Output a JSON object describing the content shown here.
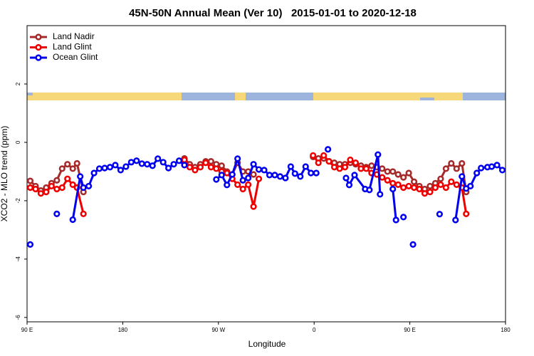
{
  "chart_data": {
    "type": "line",
    "title": "45N-50N Annual Mean (Ver 10)   2015-01-01 to 2020-12-18",
    "x_label": "Longitude",
    "y_label": "XCO2 - MLO trend (ppm)",
    "xlim": [
      90,
      540
    ],
    "ylim": [
      -6.15,
      4.0
    ],
    "xticks": [
      {
        "value": 90,
        "label": "90 E"
      },
      {
        "value": 180,
        "label": "180"
      },
      {
        "value": 270,
        "label": "90 W"
      },
      {
        "value": 360,
        "label": "0"
      },
      {
        "value": 450,
        "label": "90 E"
      },
      {
        "value": 540,
        "label": "180"
      }
    ],
    "yticks": [
      -6,
      -4,
      -2,
      0,
      2
    ],
    "legend_position": "top-left",
    "series": [
      {
        "name": "Land Nadir",
        "color": "#a52a2a",
        "x": [
          93,
          98,
          103,
          108,
          113,
          118,
          123,
          128,
          133,
          137,
          143,
          190,
          238,
          243,
          248,
          253,
          258,
          263,
          268,
          273,
          278,
          283,
          288,
          293,
          298,
          303,
          330,
          359,
          364,
          369,
          374,
          379,
          384,
          389,
          394,
          399,
          404,
          409,
          414,
          419,
          424,
          429,
          434,
          439,
          444,
          449,
          454,
          459,
          464,
          469,
          474,
          479,
          484,
          489,
          494,
          499,
          503
        ],
        "values": [
          -1.32,
          -1.5,
          -1.65,
          -1.55,
          -1.4,
          -1.3,
          -0.9,
          -0.75,
          -0.9,
          -0.72,
          -1.7,
          null,
          -0.55,
          -0.75,
          -0.85,
          -0.75,
          -0.65,
          -0.65,
          -0.75,
          -0.8,
          -1.0,
          -1.1,
          -0.7,
          -1.0,
          -1.0,
          -1.1,
          null,
          -0.5,
          -0.55,
          -0.55,
          -0.65,
          -0.7,
          -0.75,
          -0.75,
          -0.7,
          -0.75,
          -0.8,
          -0.85,
          -0.8,
          -0.85,
          -0.9,
          -1.0,
          -1.0,
          -1.1,
          -1.2,
          -1.05,
          -1.35,
          -1.5,
          -1.6,
          -1.5,
          -1.4,
          -1.25,
          -0.9,
          -0.72,
          -0.9,
          -0.72,
          -1.7
        ]
      },
      {
        "name": "Land Glint",
        "color": "#ee0000",
        "x": [
          93,
          98,
          103,
          108,
          113,
          118,
          123,
          128,
          133,
          137,
          143,
          190,
          238,
          243,
          248,
          253,
          258,
          263,
          268,
          273,
          278,
          283,
          288,
          293,
          298,
          303,
          308,
          330,
          359,
          364,
          369,
          374,
          379,
          384,
          389,
          394,
          399,
          404,
          409,
          414,
          419,
          424,
          429,
          434,
          439,
          444,
          449,
          454,
          459,
          464,
          469,
          474,
          479,
          484,
          489,
          494,
          499,
          503
        ],
        "values": [
          -1.55,
          -1.6,
          -1.75,
          -1.7,
          -1.5,
          -1.6,
          -1.55,
          -1.25,
          -1.45,
          -1.55,
          -2.45,
          null,
          -0.6,
          -0.85,
          -0.95,
          -0.85,
          -0.7,
          -0.85,
          -0.9,
          -1.0,
          -1.05,
          -1.25,
          -1.45,
          -1.6,
          -1.45,
          -2.2,
          -1.25,
          null,
          -0.45,
          -0.7,
          -0.45,
          -0.65,
          -0.85,
          -0.9,
          -0.85,
          -0.6,
          -0.7,
          -0.9,
          -0.9,
          -1.05,
          -1.1,
          -1.2,
          -1.3,
          -1.4,
          -1.45,
          -1.55,
          -1.5,
          -1.55,
          -1.6,
          -1.75,
          -1.7,
          -1.55,
          -1.45,
          -1.55,
          -1.35,
          -1.45,
          -1.55,
          -2.45
        ]
      },
      {
        "name": "Ocean Glint",
        "color": "#0000ee",
        "x": [
          93,
          105,
          118,
          125,
          133,
          140,
          143,
          148,
          153,
          158,
          163,
          168,
          173,
          178,
          183,
          188,
          193,
          198,
          203,
          208,
          213,
          218,
          223,
          228,
          233,
          238,
          250,
          268,
          273,
          278,
          283,
          288,
          293,
          298,
          303,
          308,
          313,
          318,
          323,
          328,
          333,
          338,
          342,
          347,
          352,
          357,
          362,
          367,
          373,
          380,
          390,
          393,
          398,
          408,
          412,
          420,
          422,
          428,
          434,
          437,
          440,
          444,
          448,
          453,
          460,
          478,
          485,
          493,
          499,
          503,
          507,
          513,
          517,
          523,
          527,
          532,
          537
        ],
        "values": [
          -3.5,
          null,
          -2.45,
          null,
          -2.65,
          -1.17,
          -1.55,
          -1.5,
          -1.05,
          -0.9,
          -0.88,
          -0.85,
          -0.78,
          -0.95,
          -0.83,
          -0.68,
          -0.63,
          -0.73,
          -0.75,
          -0.8,
          -0.56,
          -0.68,
          -0.88,
          -0.75,
          -0.63,
          -0.78,
          null,
          -1.27,
          -1.12,
          -1.46,
          -1.1,
          -0.56,
          -1.3,
          -1.22,
          -0.75,
          -0.93,
          -0.95,
          -1.12,
          -1.12,
          -1.17,
          -1.22,
          -0.83,
          -1.07,
          -1.17,
          -0.83,
          -1.05,
          -1.05,
          null,
          -0.24,
          null,
          -1.22,
          -1.46,
          -1.12,
          -1.6,
          -1.63,
          -0.42,
          -1.78,
          null,
          -1.6,
          -2.66,
          null,
          -2.56,
          null,
          -3.5,
          null,
          -2.46,
          null,
          -2.66,
          -1.17,
          -1.58,
          -1.5,
          -1.05,
          -0.88,
          -0.85,
          -0.83,
          -0.78,
          -0.95
        ]
      }
    ]
  }
}
